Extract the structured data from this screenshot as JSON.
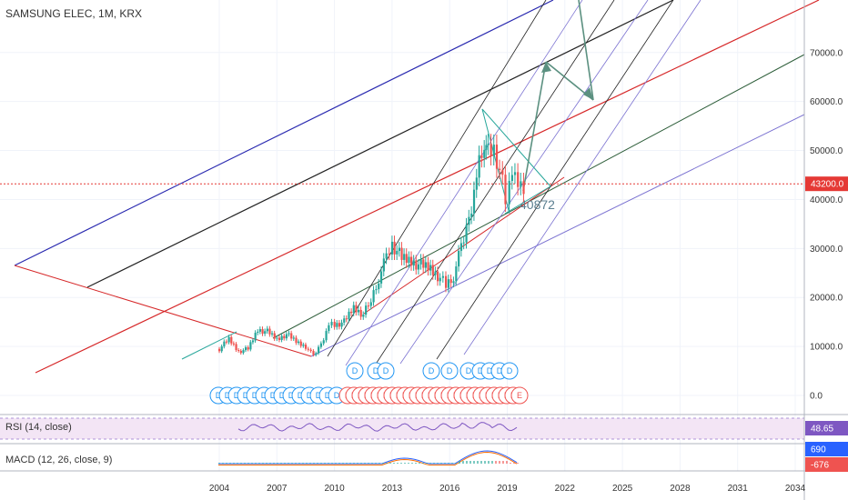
{
  "header": {
    "title": "SAMSUNG ELEC, 1M, KRX"
  },
  "colors": {
    "up": "#26a69a",
    "down": "#ef5350",
    "blue": "#2a2ab0",
    "black": "#222222",
    "red": "#d62728",
    "green": "#2e5e3a",
    "purple": "#7b72d1",
    "arrow": "#5b9080",
    "price_line": "#e53935",
    "rsi_band": "#f3e5f5",
    "rsi_line": "#7e57c2",
    "macd_line": "#2962ff",
    "signal_line": "#ff6d00"
  },
  "rsi": {
    "label": "RSI (14, close)",
    "value": "48.65"
  },
  "macd": {
    "label": "MACD (12, 26, close, 9)",
    "macd_value": "690",
    "signal_value": "-676"
  },
  "chart_data": {
    "type": "line",
    "title": "SAMSUNG ELEC, 1M, KRX",
    "xlabel": "",
    "ylabel": "",
    "x_ticks": [
      "2004",
      "2007",
      "2010",
      "2013",
      "2016",
      "2019",
      "2022",
      "2025",
      "2028",
      "2031",
      "2034"
    ],
    "y_ticks": [
      "0.0",
      "10000.0",
      "20000.0",
      "30000.0",
      "40000.0",
      "50000.0",
      "60000.0",
      "70000.0"
    ],
    "ylim": [
      -2500,
      78500
    ],
    "current_price": "43200.0",
    "annotation": "40872",
    "series": [
      {
        "values": [
          [
            2004.0,
            9500
          ],
          [
            2004.5,
            11500
          ],
          [
            2005.0,
            9000
          ],
          [
            2005.5,
            9500
          ],
          [
            2006.0,
            13500
          ],
          [
            2006.5,
            13000
          ],
          [
            2007.0,
            11500
          ],
          [
            2007.5,
            12500
          ],
          [
            2008.0,
            11000
          ],
          [
            2008.5,
            10000
          ],
          [
            2008.9,
            8000
          ],
          [
            2009.3,
            10500
          ],
          [
            2009.7,
            14500
          ],
          [
            2010.0,
            14500
          ],
          [
            2010.5,
            15000
          ],
          [
            2011.0,
            18000
          ],
          [
            2011.5,
            16500
          ],
          [
            2011.9,
            19500
          ],
          [
            2012.3,
            24000
          ],
          [
            2012.7,
            28000
          ],
          [
            2013.0,
            31000
          ],
          [
            2013.5,
            28000
          ],
          [
            2014.0,
            27500
          ],
          [
            2014.5,
            26500
          ],
          [
            2015.0,
            26000
          ],
          [
            2015.5,
            24000
          ],
          [
            2015.8,
            22500
          ],
          [
            2016.2,
            24500
          ],
          [
            2016.6,
            30000
          ],
          [
            2017.0,
            36000
          ],
          [
            2017.4,
            45000
          ],
          [
            2017.8,
            52000
          ],
          [
            2018.0,
            49000
          ],
          [
            2018.3,
            50000
          ],
          [
            2018.6,
            46000
          ],
          [
            2018.9,
            40000
          ],
          [
            2019.1,
            46000
          ],
          [
            2019.4,
            44000
          ],
          [
            2019.7,
            43200
          ]
        ]
      }
    ]
  },
  "events": {
    "dividends_lower": [
      "D",
      "D",
      "D",
      "D",
      "D",
      "D",
      "D",
      "D",
      "D",
      "D",
      "D",
      "D",
      "D",
      "D"
    ],
    "earnings": [
      "E",
      "E",
      "E",
      "E",
      "E",
      "E",
      "E",
      "E",
      "E",
      "E",
      "E",
      "E",
      "E",
      "E",
      "E",
      "E",
      "E",
      "E",
      "E",
      "E",
      "E",
      "E",
      "E",
      "E",
      "E",
      "E",
      "E",
      "E"
    ],
    "dividends_upper": [
      "D",
      "D",
      "D",
      "D",
      "D",
      "D",
      "D",
      "D",
      "D",
      "D"
    ]
  }
}
